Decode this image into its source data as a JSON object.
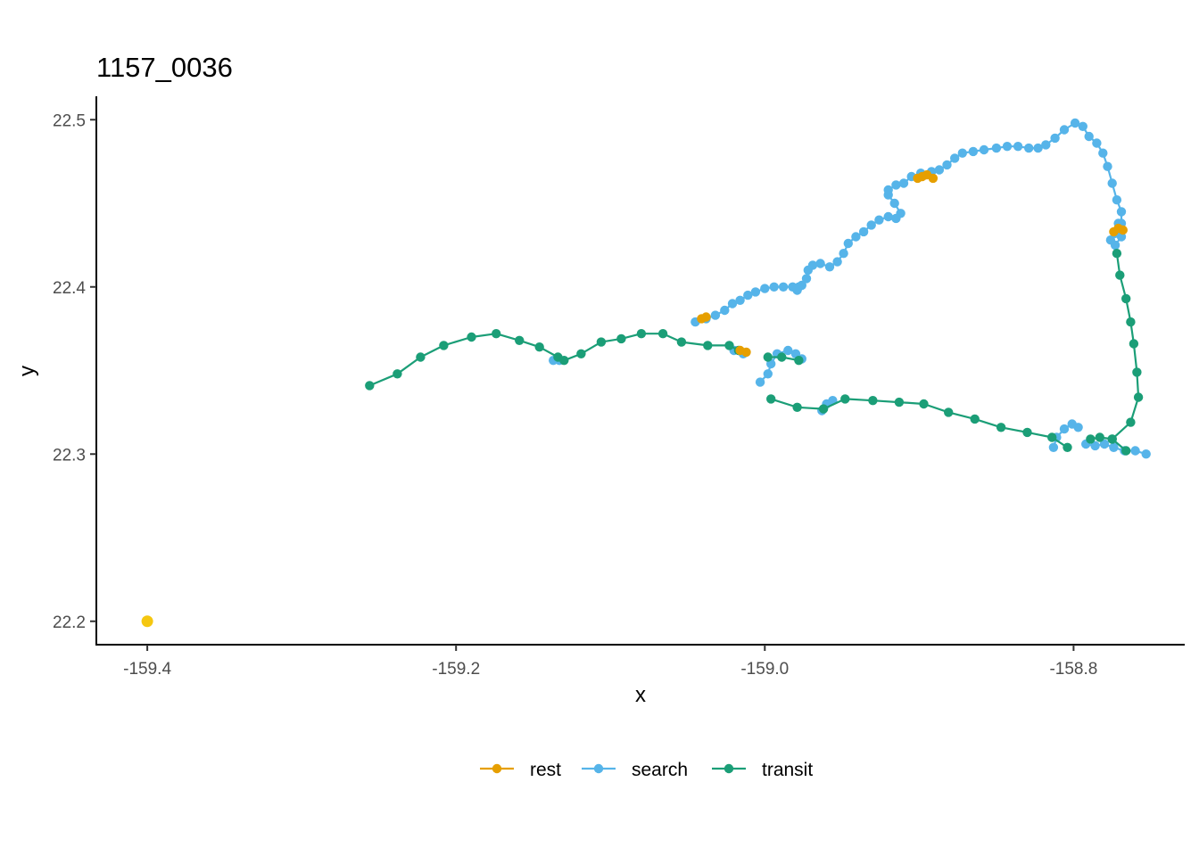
{
  "chart_data": {
    "type": "line",
    "title": "1157_0036",
    "xlabel": "x",
    "ylabel": "y",
    "xlim": [
      -159.433,
      -158.728
    ],
    "ylim": [
      22.186,
      22.514
    ],
    "xticks": [
      -159.4,
      -159.2,
      -159.0,
      -158.8
    ],
    "xtick_labels": [
      "-159.4",
      "-159.2",
      "-159.0",
      "-158.8"
    ],
    "yticks": [
      22.2,
      22.3,
      22.4,
      22.5
    ],
    "ytick_labels": [
      "22.2",
      "22.3",
      "22.4",
      "22.5"
    ],
    "grid": false,
    "legend_position": "bottom",
    "colors": {
      "rest": "#E69F00",
      "search": "#56B4E9",
      "transit": "#1B9E77",
      "start": "#F5C710"
    },
    "series": [
      {
        "name": "search",
        "color": "#56B4E9",
        "segments": [
          [
            [
              -159.045,
              22.379
            ],
            [
              -159.038,
              22.381
            ],
            [
              -159.032,
              22.383
            ],
            [
              -159.026,
              22.386
            ],
            [
              -159.021,
              22.39
            ],
            [
              -159.016,
              22.392
            ],
            [
              -159.011,
              22.395
            ],
            [
              -159.006,
              22.397
            ],
            [
              -159.0,
              22.399
            ],
            [
              -158.994,
              22.4
            ],
            [
              -158.988,
              22.4
            ],
            [
              -158.982,
              22.4
            ],
            [
              -158.979,
              22.398
            ],
            [
              -158.978,
              22.4
            ],
            [
              -158.976,
              22.401
            ],
            [
              -158.973,
              22.405
            ],
            [
              -158.972,
              22.41
            ],
            [
              -158.969,
              22.413
            ],
            [
              -158.964,
              22.414
            ],
            [
              -158.958,
              22.412
            ],
            [
              -158.953,
              22.415
            ],
            [
              -158.949,
              22.42
            ],
            [
              -158.946,
              22.426
            ],
            [
              -158.941,
              22.43
            ],
            [
              -158.936,
              22.433
            ],
            [
              -158.931,
              22.437
            ],
            [
              -158.926,
              22.44
            ],
            [
              -158.92,
              22.442
            ],
            [
              -158.915,
              22.441
            ],
            [
              -158.912,
              22.444
            ],
            [
              -158.916,
              22.45
            ],
            [
              -158.92,
              22.455
            ],
            [
              -158.92,
              22.458
            ],
            [
              -158.915,
              22.461
            ],
            [
              -158.91,
              22.462
            ],
            [
              -158.905,
              22.466
            ],
            [
              -158.899,
              22.468
            ],
            [
              -158.892,
              22.469
            ],
            [
              -158.887,
              22.47
            ],
            [
              -158.882,
              22.473
            ],
            [
              -158.877,
              22.477
            ],
            [
              -158.872,
              22.48
            ],
            [
              -158.865,
              22.481
            ],
            [
              -158.858,
              22.482
            ],
            [
              -158.85,
              22.483
            ],
            [
              -158.843,
              22.484
            ],
            [
              -158.836,
              22.484
            ],
            [
              -158.829,
              22.483
            ],
            [
              -158.823,
              22.483
            ],
            [
              -158.818,
              22.485
            ],
            [
              -158.812,
              22.489
            ],
            [
              -158.806,
              22.494
            ],
            [
              -158.799,
              22.498
            ],
            [
              -158.794,
              22.496
            ],
            [
              -158.79,
              22.49
            ],
            [
              -158.785,
              22.486
            ],
            [
              -158.781,
              22.48
            ],
            [
              -158.778,
              22.472
            ],
            [
              -158.775,
              22.462
            ],
            [
              -158.772,
              22.452
            ],
            [
              -158.769,
              22.445
            ],
            [
              -158.769,
              22.438
            ],
            [
              -158.773,
              22.432
            ],
            [
              -158.776,
              22.428
            ],
            [
              -158.773,
              22.425
            ],
            [
              -158.769,
              22.43
            ],
            [
              -158.771,
              22.438
            ]
          ],
          [
            [
              -159.137,
              22.356
            ],
            [
              -159.133,
              22.356
            ]
          ],
          [
            [
              -159.02,
              22.362
            ],
            [
              -159.014,
              22.36
            ]
          ],
          [
            [
              -159.003,
              22.343
            ],
            [
              -158.998,
              22.348
            ],
            [
              -158.996,
              22.354
            ],
            [
              -158.992,
              22.36
            ],
            [
              -158.985,
              22.362
            ],
            [
              -158.98,
              22.36
            ],
            [
              -158.976,
              22.357
            ]
          ],
          [
            [
              -158.963,
              22.326
            ],
            [
              -158.96,
              22.33
            ],
            [
              -158.956,
              22.332
            ]
          ],
          [
            [
              -158.813,
              22.304
            ],
            [
              -158.811,
              22.31
            ],
            [
              -158.806,
              22.315
            ],
            [
              -158.801,
              22.318
            ],
            [
              -158.797,
              22.316
            ]
          ],
          [
            [
              -158.792,
              22.306
            ],
            [
              -158.786,
              22.305
            ],
            [
              -158.78,
              22.306
            ],
            [
              -158.774,
              22.304
            ],
            [
              -158.767,
              22.302
            ],
            [
              -158.76,
              22.302
            ],
            [
              -158.753,
              22.3
            ]
          ]
        ]
      },
      {
        "name": "transit",
        "color": "#1B9E77",
        "segments": [
          [
            [
              -159.256,
              22.341
            ],
            [
              -159.238,
              22.348
            ],
            [
              -159.223,
              22.358
            ],
            [
              -159.208,
              22.365
            ],
            [
              -159.19,
              22.37
            ],
            [
              -159.174,
              22.372
            ],
            [
              -159.159,
              22.368
            ],
            [
              -159.146,
              22.364
            ],
            [
              -159.134,
              22.358
            ],
            [
              -159.13,
              22.356
            ],
            [
              -159.119,
              22.36
            ],
            [
              -159.106,
              22.367
            ],
            [
              -159.093,
              22.369
            ],
            [
              -159.08,
              22.372
            ],
            [
              -159.066,
              22.372
            ],
            [
              -159.054,
              22.367
            ],
            [
              -159.037,
              22.365
            ],
            [
              -159.023,
              22.365
            ],
            [
              -159.017,
              22.362
            ]
          ],
          [
            [
              -158.998,
              22.358
            ],
            [
              -158.989,
              22.358
            ],
            [
              -158.978,
              22.356
            ]
          ],
          [
            [
              -158.996,
              22.333
            ],
            [
              -158.979,
              22.328
            ],
            [
              -158.962,
              22.327
            ],
            [
              -158.948,
              22.333
            ],
            [
              -158.93,
              22.332
            ],
            [
              -158.913,
              22.331
            ],
            [
              -158.897,
              22.33
            ],
            [
              -158.881,
              22.325
            ],
            [
              -158.864,
              22.321
            ],
            [
              -158.847,
              22.316
            ],
            [
              -158.83,
              22.313
            ],
            [
              -158.814,
              22.31
            ],
            [
              -158.804,
              22.304
            ]
          ],
          [
            [
              -158.772,
              22.42
            ],
            [
              -158.77,
              22.407
            ],
            [
              -158.766,
              22.393
            ],
            [
              -158.763,
              22.379
            ],
            [
              -158.761,
              22.366
            ],
            [
              -158.759,
              22.349
            ],
            [
              -158.758,
              22.334
            ],
            [
              -158.763,
              22.319
            ],
            [
              -158.775,
              22.309
            ],
            [
              -158.783,
              22.31
            ],
            [
              -158.789,
              22.309
            ]
          ],
          [
            [
              -158.775,
              22.309
            ],
            [
              -158.766,
              22.302
            ]
          ]
        ]
      },
      {
        "name": "rest",
        "color": "#E69F00",
        "segments": [
          [
            [
              -158.901,
              22.465
            ],
            [
              -158.898,
              22.466
            ],
            [
              -158.895,
              22.467
            ],
            [
              -158.891,
              22.465
            ]
          ],
          [
            [
              -158.774,
              22.433
            ],
            [
              -158.771,
              22.435
            ],
            [
              -158.768,
              22.434
            ]
          ],
          [
            [
              -159.016,
              22.362
            ],
            [
              -159.012,
              22.361
            ]
          ],
          [
            [
              -159.041,
              22.381
            ],
            [
              -159.038,
              22.382
            ]
          ]
        ]
      }
    ],
    "start_point": {
      "x": -159.4,
      "y": 22.2,
      "color": "#F5C710"
    },
    "legend": [
      "rest",
      "search",
      "transit"
    ]
  }
}
